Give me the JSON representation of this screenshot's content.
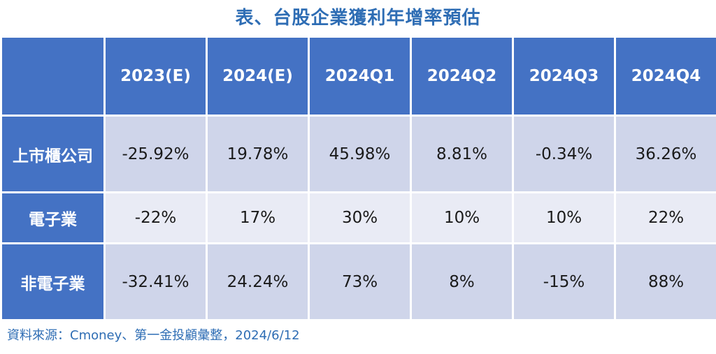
{
  "title": "表、台股企業獲利年增率預估",
  "source": "資料來源：Cmoney、第一金投顧彙整，2024/6/12",
  "chart_data": {
    "type": "table",
    "columns": [
      "",
      "2023(E)",
      "2024(E)",
      "2024Q1",
      "2024Q2",
      "2024Q3",
      "2024Q4"
    ],
    "rows": [
      {
        "label": "上市櫃公司",
        "values": [
          "-25.92%",
          "19.78%",
          "45.98%",
          "8.81%",
          "-0.34%",
          "36.26%"
        ]
      },
      {
        "label": "電子業",
        "values": [
          "-22%",
          "17%",
          "30%",
          "10%",
          "10%",
          "22%"
        ]
      },
      {
        "label": "非電子業",
        "values": [
          "-32.41%",
          "24.24%",
          "73%",
          "8%",
          "-15%",
          "88%"
        ]
      }
    ]
  }
}
